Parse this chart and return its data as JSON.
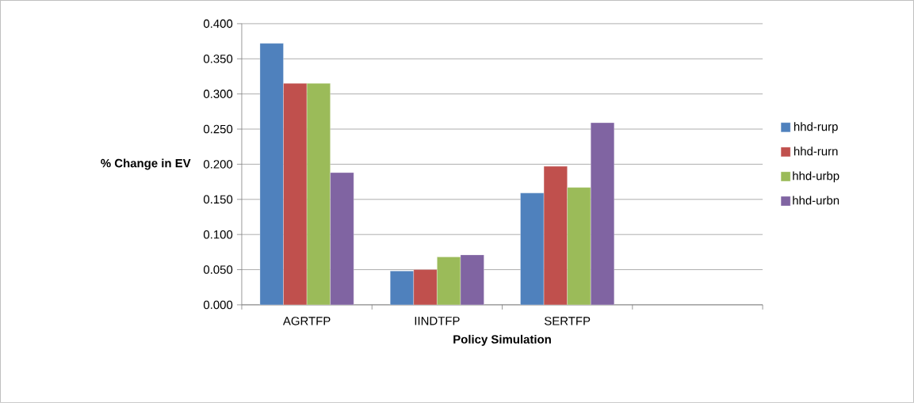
{
  "chart_data": {
    "type": "bar",
    "xlabel": "Policy Simulation",
    "ylabel": "% Change in EV",
    "categories": [
      "AGRTFP",
      "IINDTFP",
      "SERTFP",
      null
    ],
    "series": [
      {
        "name": "hhd-rurp",
        "color": "#4f81bd",
        "values": [
          0.372,
          0.048,
          0.159,
          null
        ]
      },
      {
        "name": "hhd-rurn",
        "color": "#c0504d",
        "values": [
          0.315,
          0.05,
          0.197,
          null
        ]
      },
      {
        "name": "hhd-urbp",
        "color": "#9bbb59",
        "values": [
          0.315,
          0.068,
          0.167,
          null
        ]
      },
      {
        "name": "hhd-urbn",
        "color": "#8064a2",
        "values": [
          0.188,
          0.071,
          0.259,
          null
        ]
      }
    ],
    "ylim": [
      0,
      0.4
    ],
    "yticks": [
      {
        "value": 0,
        "label": "0.000"
      },
      {
        "value": 0.05,
        "label": "0.050"
      },
      {
        "value": 0.1,
        "label": "0.100"
      },
      {
        "value": 0.15,
        "label": "0.150"
      },
      {
        "value": 0.2,
        "label": "0.200"
      },
      {
        "value": 0.25,
        "label": "0.250"
      },
      {
        "value": 0.3,
        "label": "0.300"
      },
      {
        "value": 0.35,
        "label": "0.350"
      },
      {
        "value": 0.4,
        "label": "0.400"
      }
    ],
    "grid": "y",
    "legend": "right"
  }
}
